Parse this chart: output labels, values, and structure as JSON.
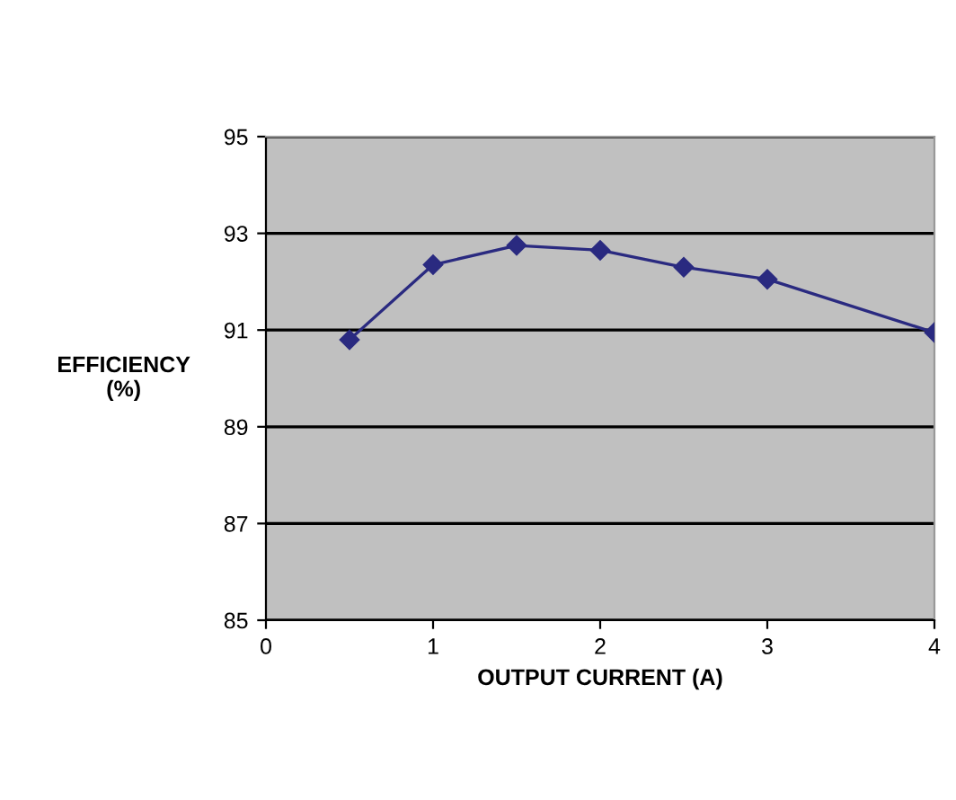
{
  "chart_data": {
    "type": "line",
    "xlabel": "OUTPUT CURRENT (A)",
    "ylabel": "EFFICIENCY\n(%)",
    "x": [
      0.5,
      1,
      1.5,
      2,
      2.5,
      3,
      4
    ],
    "series": [
      {
        "color": "#2a2a80",
        "values": [
          90.8,
          92.35,
          92.75,
          92.65,
          92.3,
          92.05,
          90.95
        ]
      }
    ],
    "xlim": [
      0,
      4
    ],
    "xticks": [
      0,
      1,
      2,
      3,
      4
    ],
    "ylim": [
      85,
      95
    ],
    "yticks": [
      85,
      87,
      89,
      91,
      93,
      95
    ],
    "grid": "y",
    "marker": "diamond",
    "line_style": "solid",
    "legend": false
  }
}
